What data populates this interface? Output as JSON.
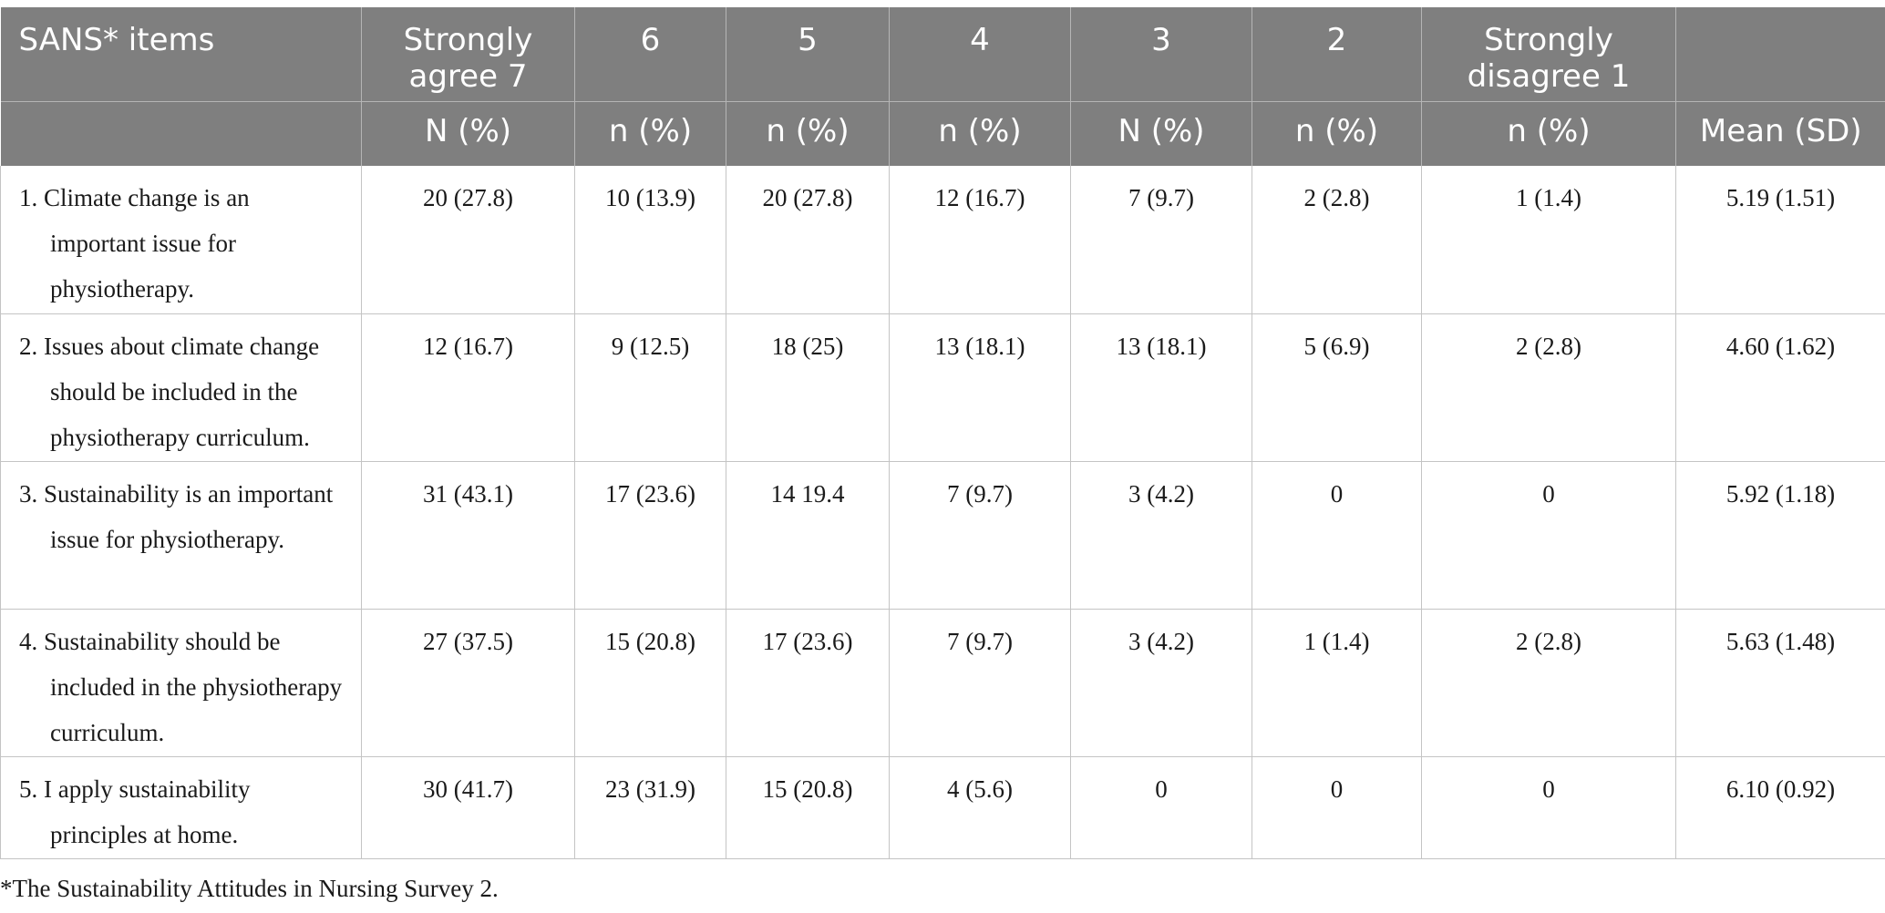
{
  "table": {
    "header_row1": [
      "SANS* items",
      "Strongly agree 7",
      "6",
      "5",
      "4",
      "3",
      "2",
      "Strongly disagree 1",
      ""
    ],
    "header_row2": [
      "",
      "N (%)",
      "n (%)",
      "n (%)",
      "n (%)",
      "N (%)",
      "n (%)",
      "n (%)",
      "Mean (SD)"
    ],
    "rows": [
      {
        "item": "1. Climate change is an important issue for physiotherapy.",
        "values": [
          "20 (27.8)",
          "10 (13.9)",
          "20 (27.8)",
          "12 (16.7)",
          "7 (9.7)",
          "2 (2.8)",
          "1 (1.4)",
          "5.19 (1.51)"
        ]
      },
      {
        "item": "2. Issues about climate change should be included in the physiotherapy curriculum.",
        "values": [
          "12 (16.7)",
          "9 (12.5)",
          "18 (25)",
          "13 (18.1)",
          "13 (18.1)",
          "5 (6.9)",
          "2 (2.8)",
          "4.60 (1.62)"
        ]
      },
      {
        "item": "3. Sustainability is an important issue for physiotherapy.",
        "values": [
          "31 (43.1)",
          "17 (23.6)",
          "14 19.4",
          "7 (9.7)",
          "3 (4.2)",
          "0",
          "0",
          "5.92 (1.18)"
        ]
      },
      {
        "item": "4. Sustainability should be included in the physiotherapy curriculum.",
        "values": [
          "27 (37.5)",
          "15 (20.8)",
          "17 (23.6)",
          "7 (9.7)",
          "3 (4.2)",
          "1 (1.4)",
          "2 (2.8)",
          "5.63 (1.48)"
        ]
      },
      {
        "item": "5. I apply sustainability principles at home.",
        "values": [
          "30 (41.7)",
          "23 (31.9)",
          "15 (20.8)",
          "4 (5.6)",
          "0",
          "0",
          "0",
          "6.10 (0.92)"
        ]
      }
    ]
  },
  "footnote": "*The Sustainability Attitudes in Nursing Survey 2.",
  "colors": {
    "header_bg": "#7f7f7f",
    "header_text": "#ffffff",
    "grid_line": "#c4c4c4",
    "body_text": "#1a1a1a"
  }
}
